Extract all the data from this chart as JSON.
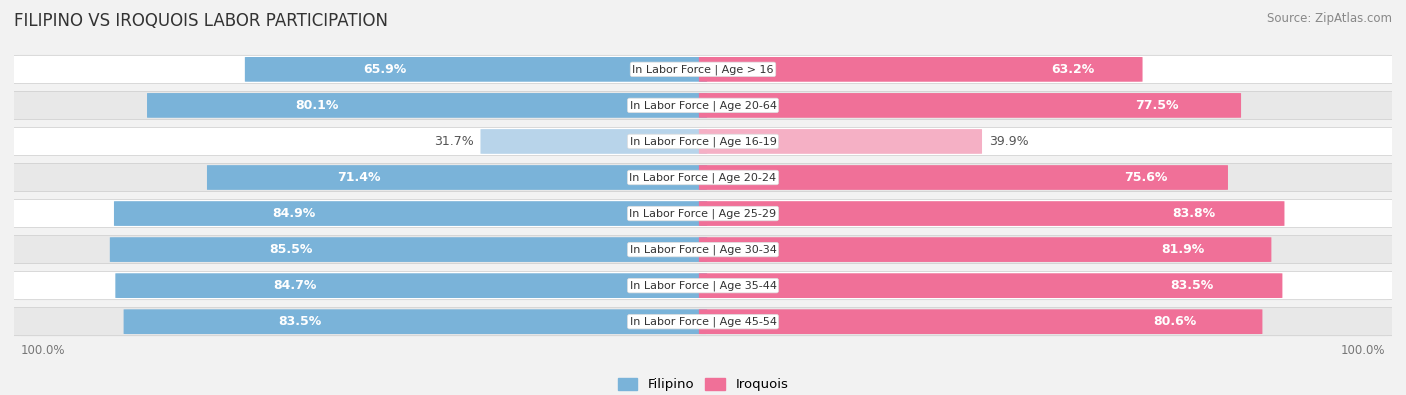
{
  "title": "FILIPINO VS IROQUOIS LABOR PARTICIPATION",
  "source": "Source: ZipAtlas.com",
  "categories": [
    "In Labor Force | Age > 16",
    "In Labor Force | Age 20-64",
    "In Labor Force | Age 16-19",
    "In Labor Force | Age 20-24",
    "In Labor Force | Age 25-29",
    "In Labor Force | Age 30-34",
    "In Labor Force | Age 35-44",
    "In Labor Force | Age 45-54"
  ],
  "filipino": [
    65.9,
    80.1,
    31.7,
    71.4,
    84.9,
    85.5,
    84.7,
    83.5
  ],
  "iroquois": [
    63.2,
    77.5,
    39.9,
    75.6,
    83.8,
    81.9,
    83.5,
    80.6
  ],
  "filipino_color": "#7ab3d9",
  "filipino_color_light": "#b8d4ea",
  "iroquois_color": "#f07098",
  "iroquois_color_light": "#f5b0c5",
  "label_color_dark": "#555555",
  "label_color_white": "#ffffff",
  "bar_height": 0.68,
  "max_value": 100.0,
  "background_color": "#f2f2f2",
  "row_even_color": "#ffffff",
  "row_odd_color": "#e8e8e8",
  "title_fontsize": 12,
  "source_fontsize": 8.5,
  "bar_label_fontsize": 9,
  "category_fontsize": 8,
  "axis_label_fontsize": 8.5
}
